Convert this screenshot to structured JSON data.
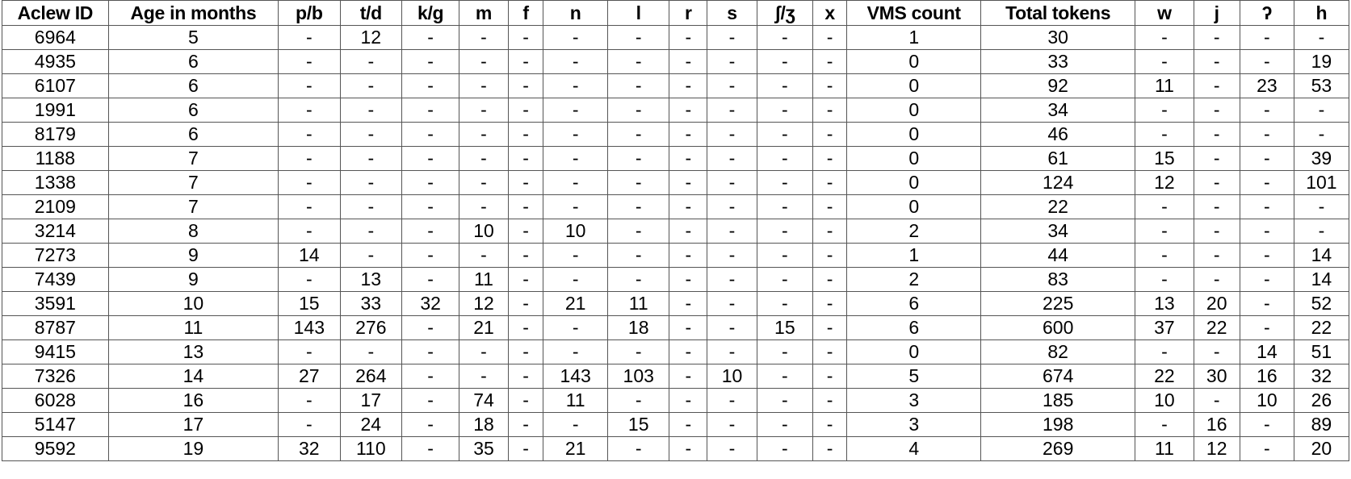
{
  "table": {
    "headers": [
      "Aclew ID",
      "Age in months",
      "p/b",
      "t/d",
      "k/g",
      "m",
      "f",
      "n",
      "l",
      "r",
      "s",
      "ʃ/ʒ",
      "x",
      "VMS count",
      "Total tokens",
      "w",
      "j",
      "ʔ",
      "h"
    ],
    "rows": [
      [
        "6964",
        "5",
        "-",
        "12",
        "-",
        "-",
        "-",
        "-",
        "-",
        "-",
        "-",
        "-",
        "-",
        "1",
        "30",
        "-",
        "-",
        "-",
        "-"
      ],
      [
        "4935",
        "6",
        "-",
        "-",
        "-",
        "-",
        "-",
        "-",
        "-",
        "-",
        "-",
        "-",
        "-",
        "0",
        "33",
        "-",
        "-",
        "-",
        "19"
      ],
      [
        "6107",
        "6",
        "-",
        "-",
        "-",
        "-",
        "-",
        "-",
        "-",
        "-",
        "-",
        "-",
        "-",
        "0",
        "92",
        "11",
        "-",
        "23",
        "53"
      ],
      [
        "1991",
        "6",
        "-",
        "-",
        "-",
        "-",
        "-",
        "-",
        "-",
        "-",
        "-",
        "-",
        "-",
        "0",
        "34",
        "-",
        "-",
        "-",
        "-"
      ],
      [
        "8179",
        "6",
        "-",
        "-",
        "-",
        "-",
        "-",
        "-",
        "-",
        "-",
        "-",
        "-",
        "-",
        "0",
        "46",
        "-",
        "-",
        "-",
        "-"
      ],
      [
        "1188",
        "7",
        "-",
        "-",
        "-",
        "-",
        "-",
        "-",
        "-",
        "-",
        "-",
        "-",
        "-",
        "0",
        "61",
        "15",
        "-",
        "-",
        "39"
      ],
      [
        "1338",
        "7",
        "-",
        "-",
        "-",
        "-",
        "-",
        "-",
        "-",
        "-",
        "-",
        "-",
        "-",
        "0",
        "124",
        "12",
        "-",
        "-",
        "101"
      ],
      [
        "2109",
        "7",
        "-",
        "-",
        "-",
        "-",
        "-",
        "-",
        "-",
        "-",
        "-",
        "-",
        "-",
        "0",
        "22",
        "-",
        "-",
        "-",
        "-"
      ],
      [
        "3214",
        "8",
        "-",
        "-",
        "-",
        "10",
        "-",
        "10",
        "-",
        "-",
        "-",
        "-",
        "-",
        "2",
        "34",
        "-",
        "-",
        "-",
        "-"
      ],
      [
        "7273",
        "9",
        "14",
        "-",
        "-",
        "-",
        "-",
        "-",
        "-",
        "-",
        "-",
        "-",
        "-",
        "1",
        "44",
        "-",
        "-",
        "-",
        "14"
      ],
      [
        "7439",
        "9",
        "-",
        "13",
        "-",
        "11",
        "-",
        "-",
        "-",
        "-",
        "-",
        "-",
        "-",
        "2",
        "83",
        "-",
        "-",
        "-",
        "14"
      ],
      [
        "3591",
        "10",
        "15",
        "33",
        "32",
        "12",
        "-",
        "21",
        "11",
        "-",
        "-",
        "-",
        "-",
        "6",
        "225",
        "13",
        "20",
        "-",
        "52"
      ],
      [
        "8787",
        "11",
        "143",
        "276",
        "-",
        "21",
        "-",
        "-",
        "18",
        "-",
        "-",
        "15",
        "-",
        "6",
        "600",
        "37",
        "22",
        "-",
        "22"
      ],
      [
        "9415",
        "13",
        "-",
        "-",
        "-",
        "-",
        "-",
        "-",
        "-",
        "-",
        "-",
        "-",
        "-",
        "0",
        "82",
        "-",
        "-",
        "14",
        "51"
      ],
      [
        "7326",
        "14",
        "27",
        "264",
        "-",
        "-",
        "-",
        "143",
        "103",
        "-",
        "10",
        "-",
        "-",
        "5",
        "674",
        "22",
        "30",
        "16",
        "32"
      ],
      [
        "6028",
        "16",
        "-",
        "17",
        "-",
        "74",
        "-",
        "11",
        "-",
        "-",
        "-",
        "-",
        "-",
        "3",
        "185",
        "10",
        "-",
        "10",
        "26"
      ],
      [
        "5147",
        "17",
        "-",
        "24",
        "-",
        "18",
        "-",
        "-",
        "15",
        "-",
        "-",
        "-",
        "-",
        "3",
        "198",
        "-",
        "16",
        "-",
        "89"
      ],
      [
        "9592",
        "19",
        "32",
        "110",
        "-",
        "35",
        "-",
        "21",
        "-",
        "-",
        "-",
        "-",
        "-",
        "4",
        "269",
        "11",
        "12",
        "-",
        "20"
      ]
    ]
  }
}
